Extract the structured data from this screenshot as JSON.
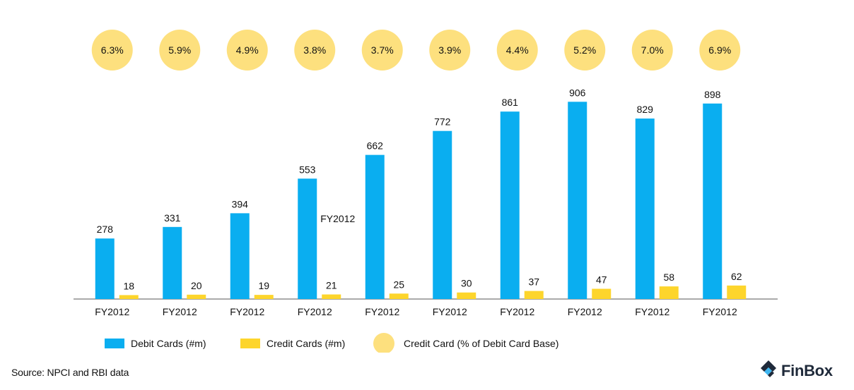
{
  "chart_data": {
    "type": "bar",
    "categories": [
      "FY2012",
      "FY2012",
      "FY2012",
      "FY2012",
      "FY2012",
      "FY2012",
      "FY2012",
      "FY2012",
      "FY2012",
      "FY2012"
    ],
    "series": [
      {
        "name": "Debit Cards (#m)",
        "values": [
          278,
          331,
          394,
          553,
          662,
          772,
          861,
          906,
          829,
          898
        ]
      },
      {
        "name": "Credit Cards (#m)",
        "values": [
          18,
          20,
          19,
          21,
          25,
          30,
          37,
          47,
          58,
          62
        ]
      },
      {
        "name": "Credit Card (% of Debit Card Base)",
        "values": [
          "6.3%",
          "5.9%",
          "4.9%",
          "3.8%",
          "3.7%",
          "3.9%",
          "4.4%",
          "5.2%",
          "7.0%",
          "6.9%"
        ]
      }
    ],
    "annotations": [
      {
        "text": "FY2012",
        "near_category": 3
      }
    ],
    "ylim": [
      0,
      920
    ],
    "grid": false,
    "legend_position": "bottom",
    "colors": {
      "debit": "#0aaef0",
      "credit": "#fdd52c",
      "percent_circle": "#fde07e"
    },
    "source": "Source: NPCI and RBI data"
  },
  "brand": {
    "name": "FinBox",
    "icon": "finbox-logo-icon",
    "color": "#1f2a3a"
  }
}
